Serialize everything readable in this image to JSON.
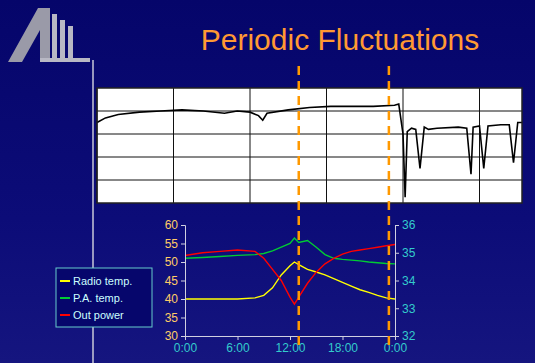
{
  "chart_data": [
    {
      "type": "line",
      "x": [
        0,
        2,
        5,
        10,
        15,
        20,
        25,
        30,
        33,
        36,
        38,
        39,
        40,
        45,
        50,
        55,
        60,
        65,
        70,
        71,
        72,
        72.5,
        73,
        74,
        75,
        76,
        77,
        78,
        80,
        85,
        87,
        88,
        88.5,
        90,
        91,
        92,
        95,
        97,
        98,
        99,
        100
      ],
      "series": [
        {
          "color": "#000000",
          "values": [
            70,
            74,
            77,
            79,
            80,
            81,
            80,
            78,
            80,
            79,
            76,
            72,
            78,
            81,
            83,
            84,
            84,
            84,
            85,
            86,
            60,
            5,
            62,
            65,
            64,
            30,
            66,
            64,
            65,
            66,
            65,
            25,
            66,
            67,
            30,
            67,
            68,
            68,
            35,
            70,
            70
          ]
        }
      ],
      "xlim": [
        0,
        100
      ],
      "ylim": [
        0,
        100
      ],
      "xticks": [
        0,
        18,
        36,
        54,
        72,
        90
      ],
      "yticks": [
        20,
        40,
        60,
        80
      ],
      "grid": true,
      "tick_labels": false
    },
    {
      "type": "line",
      "title": "Periodic Fluctuations",
      "x": [
        0,
        2,
        4,
        6,
        8,
        9,
        10,
        11,
        12,
        12.5,
        13,
        14,
        15,
        16,
        17,
        18,
        19,
        20,
        21,
        22,
        23,
        24
      ],
      "series": [
        {
          "name": "Radio temp.",
          "color": "#ffff00",
          "values": [
            40,
            40,
            40,
            40,
            40.3,
            41,
            43,
            46.5,
            49,
            50,
            49.3,
            48,
            47.3,
            46.5,
            45.5,
            44.5,
            43.5,
            42.5,
            41.8,
            41,
            40.3,
            40
          ]
        },
        {
          "name": "P.A. temp.",
          "color": "#00cc33",
          "values": [
            51,
            51.2,
            51.5,
            51.8,
            52,
            52.3,
            53,
            54,
            55,
            56.5,
            55.3,
            55.8,
            54,
            52,
            51,
            50.7,
            50.5,
            50.3,
            50,
            49.8,
            49.6,
            49.5
          ]
        },
        {
          "name": "Out power",
          "color": "#ff0000",
          "axis": "y2",
          "values": [
            34.9,
            35,
            35.05,
            35.1,
            35.05,
            34.8,
            34.4,
            34,
            33.4,
            33.15,
            33.4,
            33.9,
            34.3,
            34.6,
            34.8,
            34.95,
            35.05,
            35.1,
            35.15,
            35.2,
            35.25,
            35.3
          ]
        }
      ],
      "xlim": [
        0,
        24
      ],
      "xticks": [
        {
          "value": 0,
          "label": "0:00"
        },
        {
          "value": 6,
          "label": "6:00"
        },
        {
          "value": 12,
          "label": "12:00"
        },
        {
          "value": 18,
          "label": "18:00"
        },
        {
          "value": 24,
          "label": "0:00"
        }
      ],
      "ylim": [
        30,
        60
      ],
      "yticks": [
        30,
        35,
        40,
        45,
        50,
        55,
        60
      ],
      "y2lim": [
        32,
        36
      ],
      "y2ticks": [
        32,
        33,
        34,
        35,
        36
      ],
      "vlines": [
        13,
        23.3
      ],
      "legend": "left"
    }
  ]
}
